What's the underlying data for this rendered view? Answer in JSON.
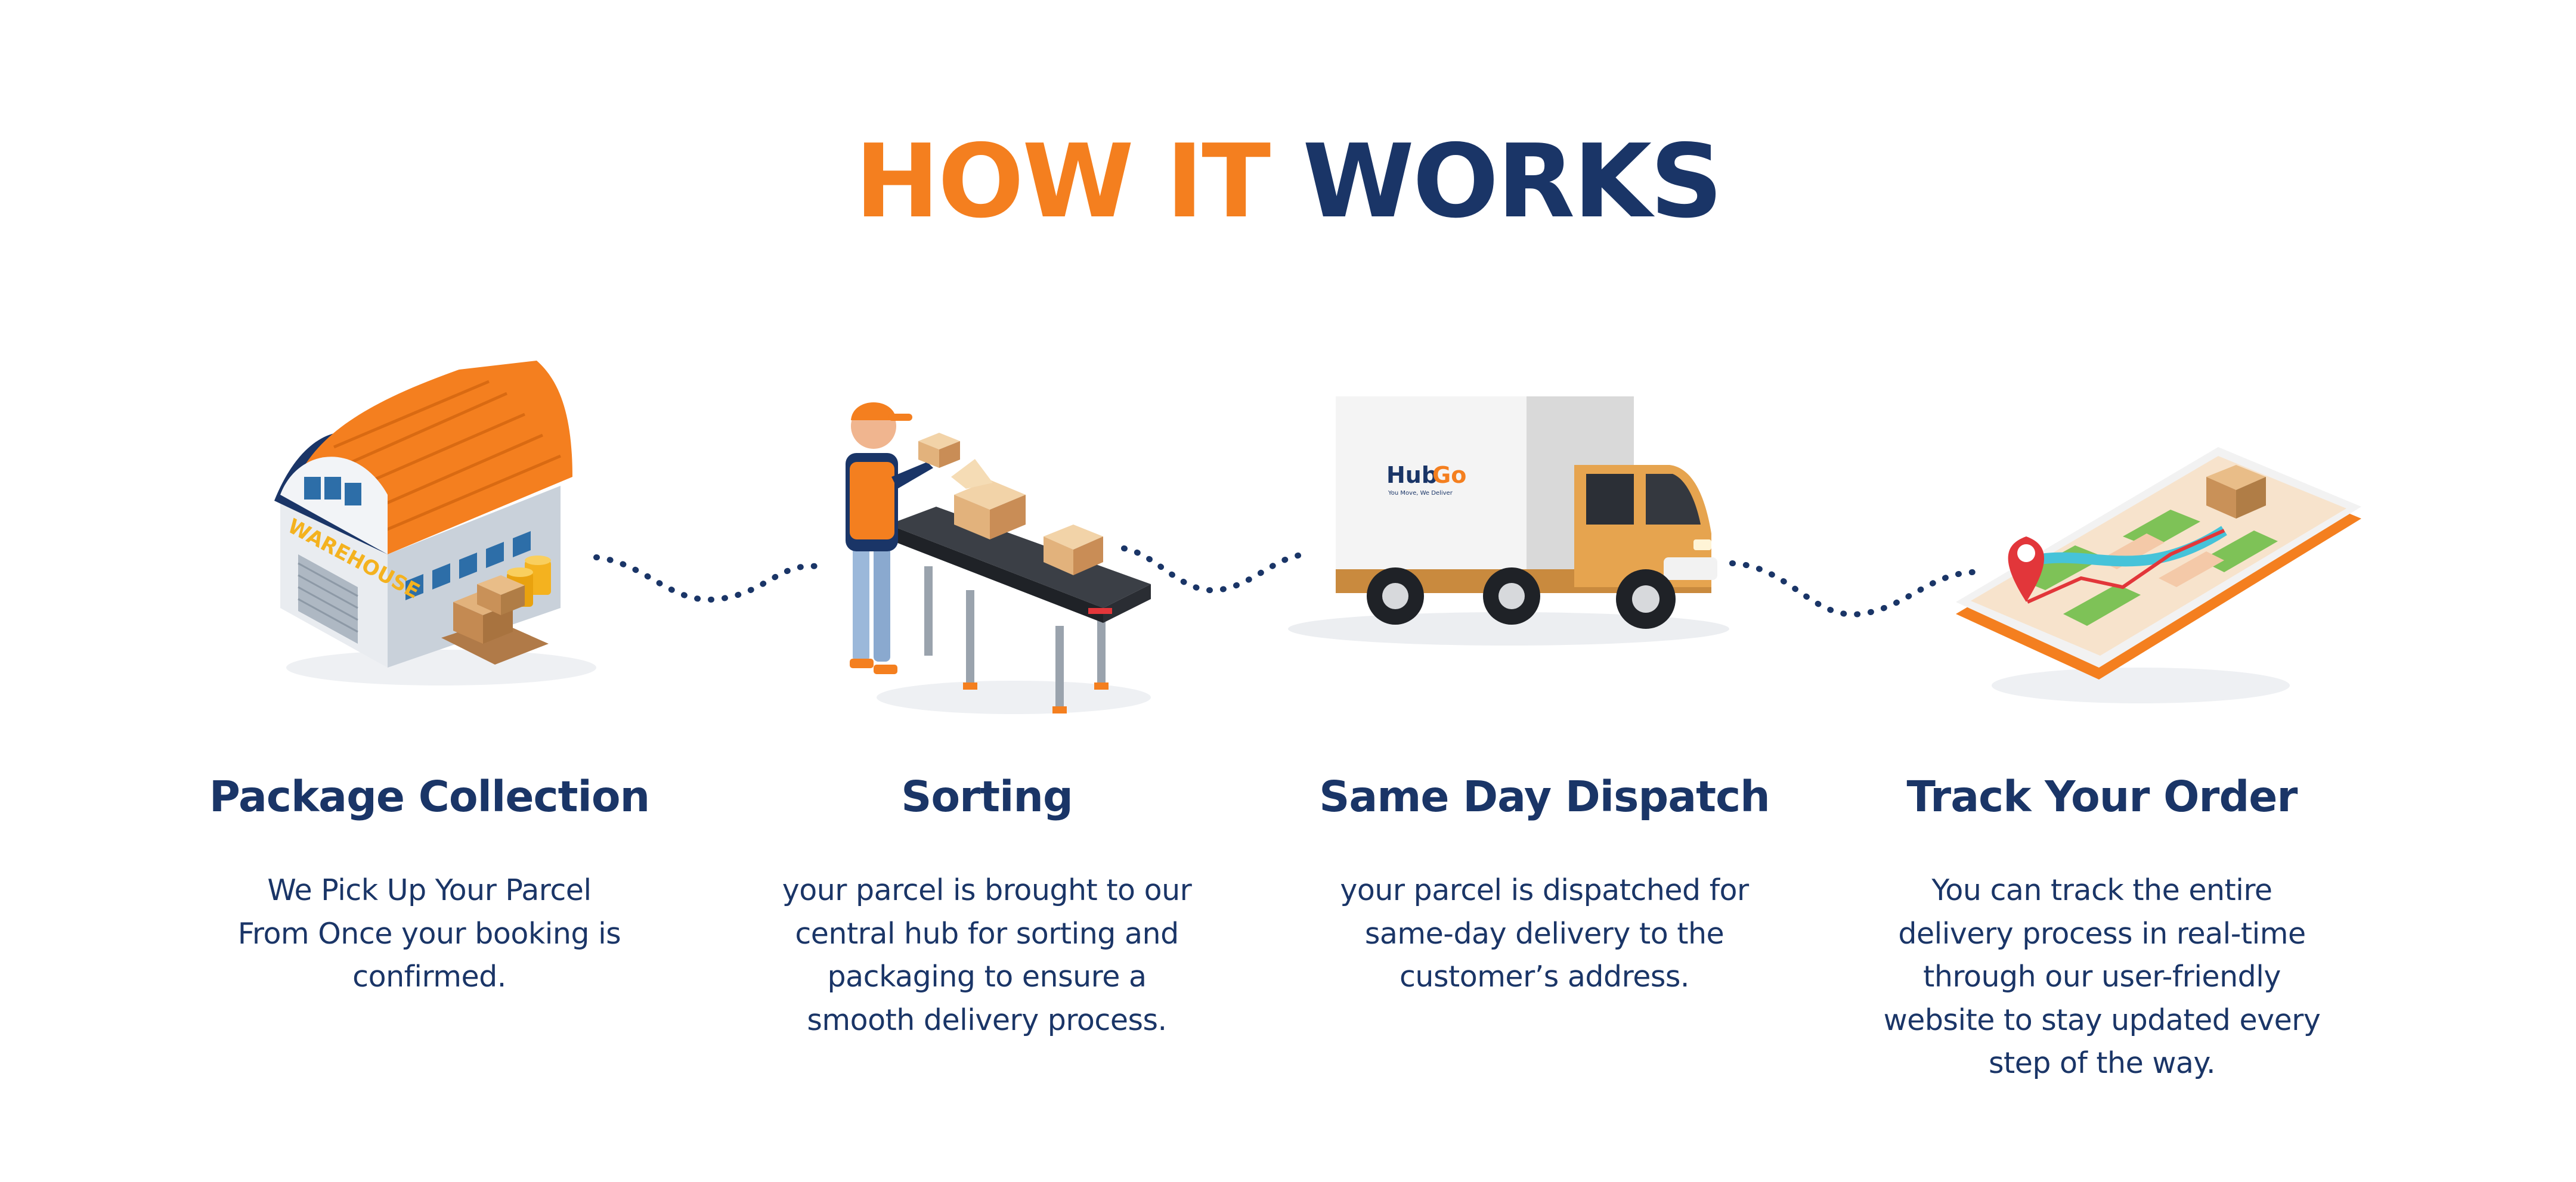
{
  "heading": {
    "part1": "HOW IT",
    "part2": "WORKS"
  },
  "colors": {
    "accent": "#f47f1f",
    "navy": "#1a3567"
  },
  "steps": [
    {
      "icon": "warehouse-icon",
      "title": "Package Collection",
      "lines": [
        "We Pick Up Your Parcel",
        "From Once your booking is",
        "confirmed."
      ],
      "illustration_text": "WAREHOUSE"
    },
    {
      "icon": "conveyor-worker-icon",
      "title": "Sorting",
      "lines": [
        "your parcel is brought to our",
        "central hub for sorting and",
        "packaging to ensure a",
        "smooth delivery process."
      ]
    },
    {
      "icon": "delivery-truck-icon",
      "title": "Same Day Dispatch",
      "lines": [
        "your parcel is dispatched for",
        "same-day delivery to the",
        "customer’s address."
      ],
      "truck_brand": {
        "hub": "Hub",
        "go": "Go",
        "tagline": "You Move, We Deliver"
      }
    },
    {
      "icon": "phone-map-icon",
      "title": "Track Your Order",
      "lines": [
        "You can track the entire",
        "delivery process in real-time",
        "through our user-friendly",
        "website to stay updated every",
        "step of the way."
      ]
    }
  ]
}
